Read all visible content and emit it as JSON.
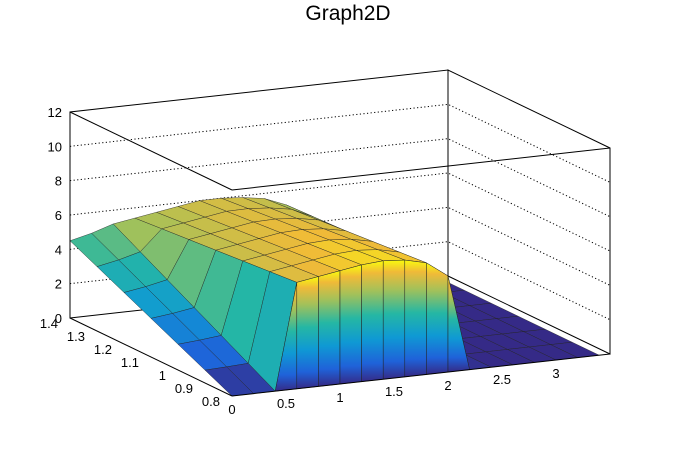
{
  "chart_data": {
    "type": "surface",
    "title": "Graph2D",
    "xlabel": "",
    "ylabel": "",
    "zlabel": "",
    "xlim": [
      0,
      3.5
    ],
    "ylim": [
      0.8,
      1.4
    ],
    "zlim": [
      0,
      12
    ],
    "grid": true,
    "colormap": "parula",
    "x_ticks": [
      "0",
      "0.5",
      "1",
      "1.5",
      "2",
      "2.5",
      "3"
    ],
    "y_ticks": [
      "0.8",
      "0.9",
      "1",
      "1.1",
      "1.2",
      "1.3",
      "1.4"
    ],
    "z_ticks": [
      "0",
      "2",
      "4",
      "6",
      "8",
      "10",
      "12"
    ],
    "surface_profile": {
      "x": [
        0,
        0.2,
        0.4,
        0.6,
        0.8,
        1.0,
        1.2,
        1.4,
        1.6,
        1.8,
        2.0,
        2.2,
        2.4,
        2.6,
        2.8,
        3.0,
        3.2,
        3.4
      ],
      "z_at_y_min": [
        0,
        0,
        0,
        6.2,
        6.4,
        6.6,
        6.8,
        6.9,
        6.8,
        6.5,
        5.6,
        0,
        0,
        0,
        0,
        0,
        0,
        0
      ],
      "z_at_y_max": [
        4.5,
        4.8,
        5.2,
        5.4,
        5.6,
        5.8,
        6.0,
        6.0,
        5.9,
        5.7,
        5.2,
        1.5,
        0,
        0,
        0,
        0,
        0,
        0
      ]
    }
  }
}
